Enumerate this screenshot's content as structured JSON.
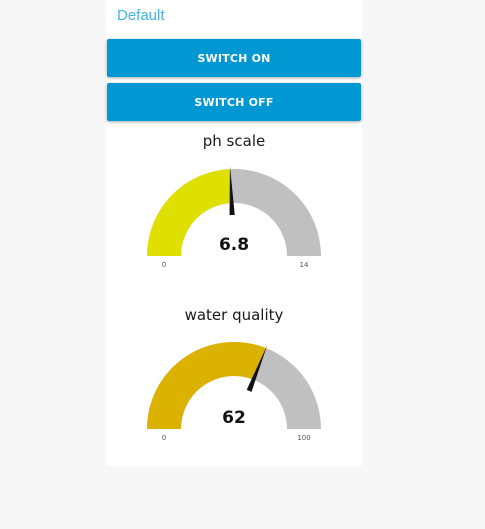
{
  "group": {
    "title": "Default"
  },
  "buttons": {
    "switch_on_label": "SWITCH ON",
    "switch_off_label": "SWITCH OFF"
  },
  "gauges": [
    {
      "title": "ph scale",
      "value": 6.8,
      "value_text": "6.8",
      "min": 0,
      "max": 14,
      "min_label": "0",
      "max_label": "14",
      "fill_color": "#e0e000",
      "track_color": "#c0c0c0"
    },
    {
      "title": "water quality",
      "value": 62,
      "value_text": "62",
      "min": 0,
      "max": 100,
      "min_label": "0",
      "max_label": "100",
      "fill_color": "#dcb200",
      "track_color": "#c0c0c0"
    }
  ],
  "colors": {
    "button_bg": "#0097d3",
    "group_title": "#43b5e6",
    "needle": "#111111"
  }
}
